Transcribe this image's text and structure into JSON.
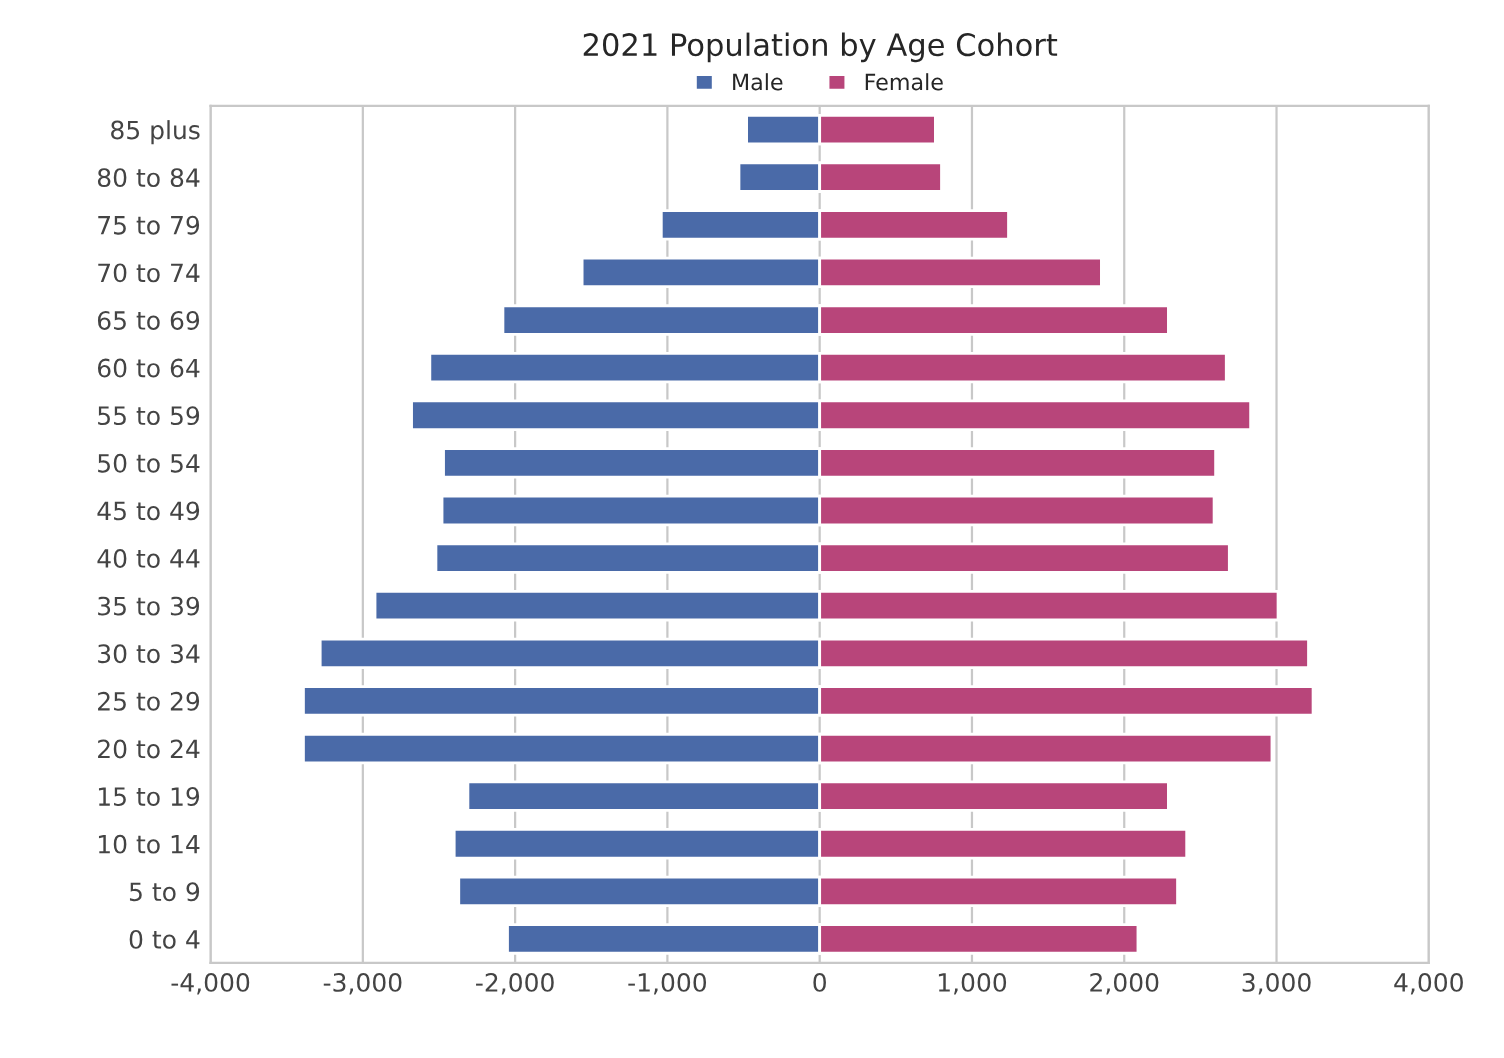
{
  "chart_data": {
    "type": "bar",
    "orientation": "horizontal",
    "title": "2021 Population by Age Cohort",
    "categories": [
      "85 plus",
      "80 to 84",
      "75 to 79",
      "70 to 74",
      "65 to 69",
      "60 to 64",
      "55 to 59",
      "50 to 54",
      "45 to 49",
      "40 to 44",
      "35 to 39",
      "30 to 34",
      "25 to 29",
      "20 to 24",
      "15 to 19",
      "10 to 14",
      "5 to 9",
      "0 to 4"
    ],
    "series": [
      {
        "name": "Male",
        "color": "#4a6aa8",
        "values": [
          -480,
          -530,
          -1040,
          -1560,
          -2080,
          -2560,
          -2680,
          -2470,
          -2480,
          -2520,
          -2920,
          -3280,
          -3390,
          -3390,
          -2310,
          -2400,
          -2370,
          -2050
        ]
      },
      {
        "name": "Female",
        "color": "#b8457a",
        "values": [
          760,
          800,
          1240,
          1850,
          2290,
          2670,
          2830,
          2600,
          2590,
          2690,
          3010,
          3210,
          3240,
          2970,
          2290,
          2410,
          2350,
          2090
        ]
      }
    ],
    "xlim": [
      -4000,
      4000
    ],
    "xticks": [
      {
        "value": -4000,
        "label": "-4,000"
      },
      {
        "value": -3000,
        "label": "-3,000"
      },
      {
        "value": -2000,
        "label": "-2,000"
      },
      {
        "value": -1000,
        "label": "-1,000"
      },
      0,
      {
        "value": 1000,
        "label": "1,000"
      },
      {
        "value": 2000,
        "label": "2,000"
      },
      {
        "value": 3000,
        "label": "3,000"
      },
      {
        "value": 4000,
        "label": "4,000"
      }
    ],
    "grid": "x",
    "legend": "top",
    "stacked": true
  }
}
